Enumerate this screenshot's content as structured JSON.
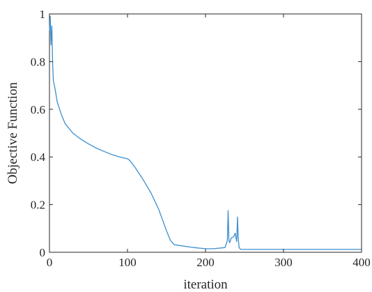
{
  "chart_data": {
    "type": "line",
    "title": "",
    "xlabel": "iteration",
    "ylabel": "Objective Function",
    "xlim": [
      0,
      400
    ],
    "ylim": [
      0,
      1
    ],
    "xticks": [
      0,
      100,
      200,
      300,
      400
    ],
    "yticks": [
      0,
      0.2,
      0.4,
      0.6,
      0.8,
      1
    ],
    "xtick_labels": [
      "0",
      "100",
      "200",
      "300",
      "400"
    ],
    "ytick_labels": [
      "0",
      "0.2",
      "0.4",
      "0.6",
      "0.8",
      "1"
    ],
    "grid": false,
    "box": true,
    "series": [
      {
        "color": "#3a8fd0",
        "x": [
          0,
          1,
          2,
          3,
          4,
          5,
          7,
          10,
          15,
          20,
          30,
          40,
          50,
          60,
          70,
          80,
          90,
          100,
          103,
          110,
          120,
          130,
          140,
          150,
          155,
          160,
          170,
          180,
          190,
          200,
          210,
          220,
          225,
          228,
          229,
          230,
          231,
          233,
          236,
          238,
          240,
          241,
          242,
          243,
          245,
          247,
          250,
          260,
          280,
          300,
          350,
          400
        ],
        "y": [
          0.93,
          0.99,
          0.87,
          0.95,
          0.8,
          0.72,
          0.69,
          0.63,
          0.58,
          0.54,
          0.5,
          0.475,
          0.455,
          0.437,
          0.423,
          0.41,
          0.4,
          0.392,
          0.385,
          0.355,
          0.305,
          0.25,
          0.18,
          0.09,
          0.05,
          0.032,
          0.027,
          0.022,
          0.018,
          0.015,
          0.015,
          0.018,
          0.02,
          0.05,
          0.175,
          0.05,
          0.04,
          0.06,
          0.065,
          0.08,
          0.045,
          0.148,
          0.06,
          0.02,
          0.012,
          0.012,
          0.012,
          0.012,
          0.012,
          0.012,
          0.012,
          0.012
        ]
      }
    ]
  }
}
